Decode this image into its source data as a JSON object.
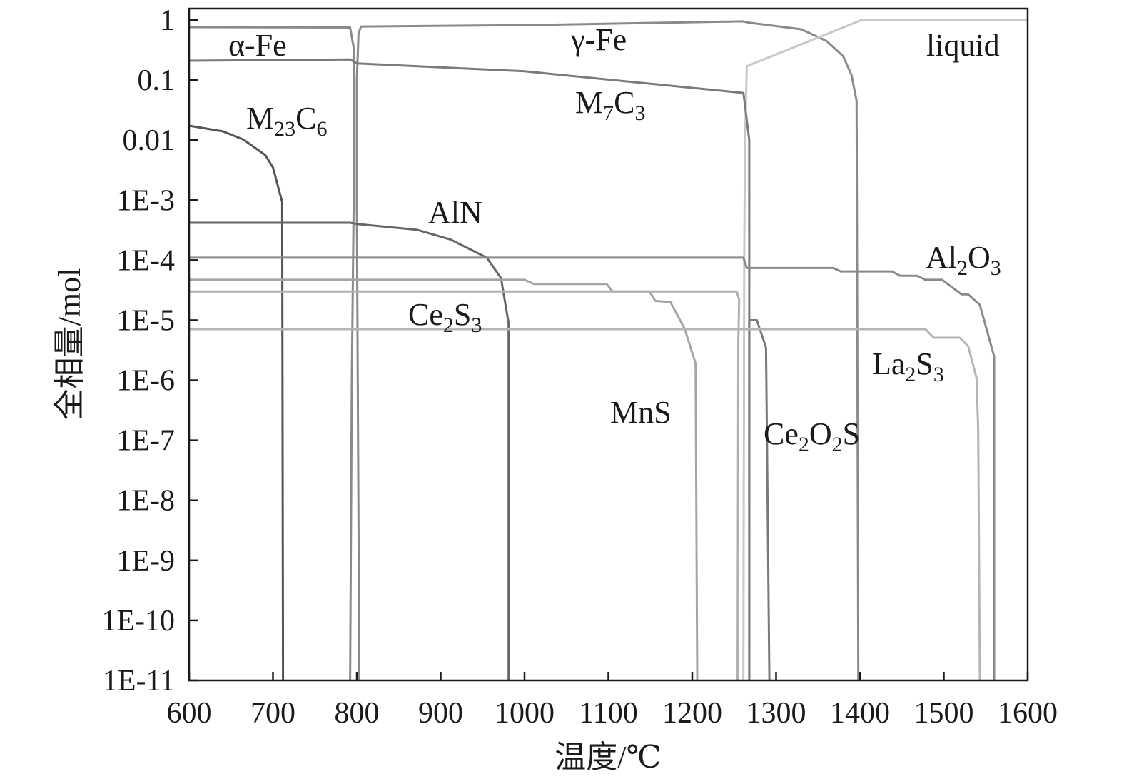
{
  "chart_data": {
    "type": "line",
    "xlabel": "温度/℃",
    "ylabel": "全相量/mol",
    "xlim": [
      600,
      1600
    ],
    "ylim": [
      1e-11,
      1
    ],
    "yscale": "log",
    "grid": false,
    "x_ticks": [
      "600",
      "700",
      "800",
      "900",
      "1000",
      "1100",
      "1200",
      "1300",
      "1400",
      "1500",
      "1600"
    ],
    "y_ticks": [
      "1",
      "0.1",
      "0.01",
      "1E-3",
      "1E-4",
      "1E-5",
      "1E-6",
      "1E-7",
      "1E-8",
      "1E-9",
      "1E-10",
      "1E-11"
    ],
    "series": [
      {
        "label_parts": [
          {
            "t": "α-Fe"
          }
        ],
        "color": "#8a8a8a",
        "points": [
          [
            600,
            0.76
          ],
          [
            792,
            0.75
          ],
          [
            797,
            0.3
          ],
          [
            797,
            0.01
          ],
          [
            794,
            1e-06
          ],
          [
            792,
            1e-11
          ]
        ]
      },
      {
        "label_parts": [
          {
            "t": "γ-Fe"
          }
        ],
        "color": "#8a8a8a",
        "points": [
          [
            803,
            1e-11
          ],
          [
            800,
            0.001
          ],
          [
            800,
            0.1
          ],
          [
            802,
            0.6
          ],
          [
            805,
            0.78
          ],
          [
            1000,
            0.82
          ],
          [
            1260,
            0.95
          ],
          [
            1268,
            0.9
          ],
          [
            1330,
            0.7
          ],
          [
            1360,
            0.45
          ],
          [
            1380,
            0.25
          ],
          [
            1390,
            0.12
          ],
          [
            1396,
            0.045
          ],
          [
            1398,
            1e-11
          ]
        ]
      },
      {
        "label_parts": [
          {
            "t": "liquid"
          }
        ],
        "color": "#c8c8c8",
        "points": [
          [
            1261,
            1e-11
          ],
          [
            1262,
            0.0001
          ],
          [
            1263,
            0.01
          ],
          [
            1265,
            0.17
          ],
          [
            1402,
            1.0
          ],
          [
            1600,
            1.0
          ]
        ]
      },
      {
        "label_parts": [
          {
            "t": "M"
          },
          {
            "t": "7",
            "sub": true
          },
          {
            "t": "C"
          },
          {
            "t": "3",
            "sub": true
          }
        ],
        "color": "#7a7a7a",
        "points": [
          [
            600,
            0.21
          ],
          [
            792,
            0.22
          ],
          [
            800,
            0.19
          ],
          [
            1000,
            0.14
          ],
          [
            1261,
            0.061
          ],
          [
            1268,
            0.01
          ],
          [
            1268,
            1e-11
          ]
        ]
      },
      {
        "label_parts": [
          {
            "t": "M"
          },
          {
            "t": "23",
            "sub": true
          },
          {
            "t": "C"
          },
          {
            "t": "6",
            "sub": true
          }
        ],
        "color": "#555555",
        "points": [
          [
            600,
            0.0174
          ],
          [
            640,
            0.014
          ],
          [
            665,
            0.0102
          ],
          [
            691,
            0.0056
          ],
          [
            700,
            0.0035
          ],
          [
            711,
            0.00093
          ],
          [
            712,
            1e-11
          ]
        ]
      },
      {
        "label_parts": [
          {
            "t": "AlN"
          }
        ],
        "color": "#666666",
        "points": [
          [
            600,
            0.00042
          ],
          [
            792,
            0.00042
          ],
          [
            800,
            0.0004
          ],
          [
            872,
            0.00032
          ],
          [
            912,
            0.00022
          ],
          [
            955,
            0.00011
          ],
          [
            972,
            5e-05
          ],
          [
            981,
            8.9e-06
          ],
          [
            981,
            1e-11
          ]
        ]
      },
      {
        "label_parts": [
          {
            "t": "Al"
          },
          {
            "t": "2",
            "sub": true
          },
          {
            "t": "O"
          },
          {
            "t": "3",
            "sub": true
          }
        ],
        "color": "#8a8a8a",
        "points": [
          [
            600,
            0.00011
          ],
          [
            1261,
            0.00011
          ],
          [
            1265,
            7.4e-05
          ],
          [
            1368,
            7.4e-05
          ],
          [
            1377,
            6.5e-05
          ],
          [
            1438,
            6.5e-05
          ],
          [
            1448,
            5.5e-05
          ],
          [
            1468,
            5.5e-05
          ],
          [
            1478,
            4.7e-05
          ],
          [
            1498,
            4.7e-05
          ],
          [
            1521,
            2.7e-05
          ],
          [
            1529,
            2.7e-05
          ],
          [
            1543,
            1.8e-05
          ],
          [
            1560,
            2.5e-06
          ],
          [
            1560,
            1e-11
          ]
        ]
      },
      {
        "label_parts": [
          {
            "t": "MnS"
          }
        ],
        "color": "#a5a5a5",
        "points": [
          [
            600,
            4.7e-05
          ],
          [
            1000,
            4.7e-05
          ],
          [
            1011,
            4e-05
          ],
          [
            1098,
            4e-05
          ],
          [
            1105,
            3e-05
          ],
          [
            1149,
            3e-05
          ],
          [
            1156,
            2.1e-05
          ],
          [
            1174,
            2e-05
          ],
          [
            1191,
            7.2e-06
          ],
          [
            1204,
            1.9e-06
          ],
          [
            1206,
            1e-11
          ]
        ]
      },
      {
        "label_parts": [
          {
            "t": "Ce"
          },
          {
            "t": "2",
            "sub": true
          },
          {
            "t": "S"
          },
          {
            "t": "3",
            "sub": true
          }
        ],
        "color": "#b0b0b0",
        "points": [
          [
            600,
            3e-05
          ],
          [
            1253,
            3e-05
          ],
          [
            1256,
            2.2e-05
          ],
          [
            1255,
            4.6e-06
          ],
          [
            1254,
            1e-11
          ]
        ]
      },
      {
        "label_parts": [
          {
            "t": "Ce"
          },
          {
            "t": "2",
            "sub": true
          },
          {
            "t": "O"
          },
          {
            "t": "2",
            "sub": true
          },
          {
            "t": "S"
          }
        ],
        "color": "#7a7a7a",
        "points": [
          [
            1268,
            1e-11
          ],
          [
            1268,
            1e-05
          ],
          [
            1277,
            1e-05
          ],
          [
            1288,
            3.5e-06
          ],
          [
            1292,
            1e-11
          ]
        ]
      },
      {
        "label_parts": [
          {
            "t": "La"
          },
          {
            "t": "2",
            "sub": true
          },
          {
            "t": "S"
          },
          {
            "t": "3",
            "sub": true
          }
        ],
        "color": "#b5b5b5",
        "points": [
          [
            600,
            7.1e-06
          ],
          [
            1478,
            7.1e-06
          ],
          [
            1488,
            5.1e-06
          ],
          [
            1519,
            5.1e-06
          ],
          [
            1529,
            3.7e-06
          ],
          [
            1539,
            1.1e-06
          ],
          [
            1541,
            1.5e-07
          ],
          [
            1543,
            1e-11
          ]
        ]
      }
    ]
  }
}
